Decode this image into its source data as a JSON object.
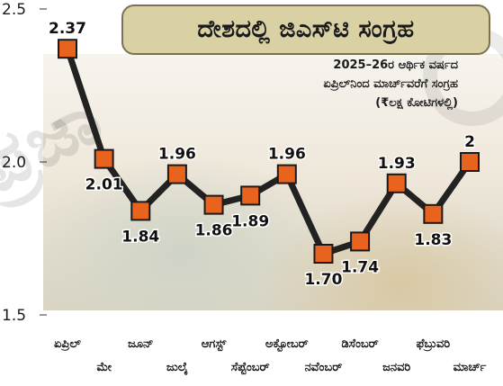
{
  "chart_data": {
    "type": "line",
    "title": "ದೇಶದಲ್ಲಿ ಜಿಎಸ್‌ಟಿ ಸಂಗ್ರಹ",
    "subtitle": [
      "2025–26ರ ಆರ್ಥಿಕ ವರ್ಷದ",
      "ಏಪ್ರಿಲ್‌ನಿಂದ ಮಾರ್ಚ್‌ವರೆಗೆ ಸಂಗ್ರಹ",
      "(₹ಲಕ್ಷ ಕೋಟಿಗಳಲ್ಲಿ)"
    ],
    "categories": [
      "ಏಪ್ರಿಲ್",
      "ಮೇ",
      "ಜೂನ್",
      "ಜುಲೈ",
      "ಆಗಸ್ಟ್",
      "ಸೆಪ್ಟೆಂಬರ್",
      "ಅಕ್ಟೋಬರ್",
      "ನವೆಂಬರ್",
      "ಡಿಸೆಂಬರ್",
      "ಜನವರಿ",
      "ಫೆಬ್ರುವರಿ",
      "ಮಾರ್ಚ್"
    ],
    "values": [
      2.37,
      2.01,
      1.84,
      1.96,
      1.86,
      1.89,
      1.96,
      1.7,
      1.74,
      1.93,
      1.83,
      2
    ],
    "value_labels": [
      "2.37",
      "2.01",
      "1.84",
      "1.96",
      "1.86",
      "1.89",
      "1.96",
      "1.70",
      "1.74",
      "1.93",
      "1.83",
      "2"
    ],
    "ylim": [
      1.5,
      2.5
    ],
    "yticks": [
      1.5,
      2.0,
      2.5
    ],
    "ytick_labels": [
      "1.5",
      "2.0",
      "2.5"
    ],
    "xlabel": "",
    "ylabel": "",
    "grid": false,
    "colors": {
      "line": "#222222",
      "marker": "#e8641e",
      "marker_stroke": "#1a1a1a",
      "title_box": "#d9d0a4"
    }
  },
  "watermark": "ಪ್ರಜಾ"
}
